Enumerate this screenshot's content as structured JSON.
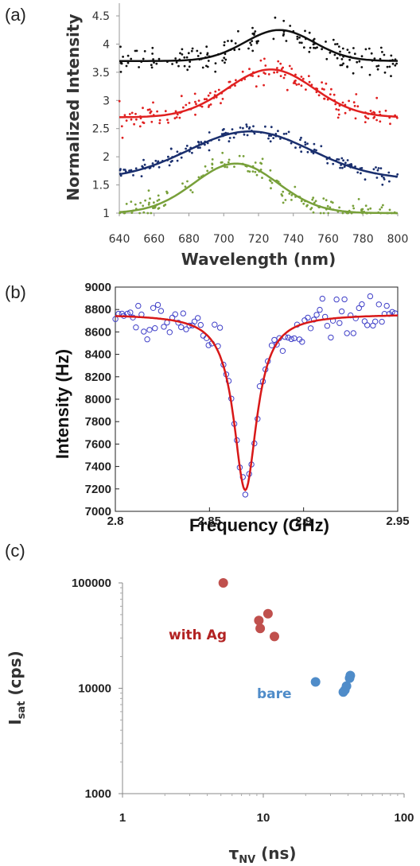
{
  "colors": {
    "black": "#111111",
    "red": "#e02020",
    "navy": "#1a2f6e",
    "green": "#78a03a",
    "open_circle": "#4040c8",
    "fit_red": "#d81818",
    "with_ag": "#c0504d",
    "bare": "#4f8cc9",
    "annot_red": "#b22222",
    "annot_blue": "#4f8cc9"
  },
  "chart_data": [
    {
      "panel": "(a)",
      "type": "scatter",
      "xlabel": "Wavelength (nm)",
      "ylabel": "Normalized Intensity",
      "xlim": [
        640,
        800
      ],
      "ylim": [
        1,
        4.5
      ],
      "xticks": [
        "640",
        "660",
        "680",
        "700",
        "720",
        "740",
        "760",
        "780",
        "800"
      ],
      "yticks": [
        "1",
        "1.5",
        "2",
        "2.5",
        "3",
        "3.5",
        "4",
        "4.5"
      ],
      "grid": false,
      "legend": "none",
      "series": [
        {
          "color": "black",
          "baseline": 3.7,
          "amplitude": 0.55,
          "center": 732,
          "width": 28,
          "noise": 0.17
        },
        {
          "color": "red",
          "baseline": 2.7,
          "amplitude": 0.85,
          "center": 727,
          "width": 35,
          "noise": 0.15
        },
        {
          "color": "navy",
          "baseline": 1.6,
          "amplitude": 0.85,
          "center": 715,
          "width": 50,
          "noise": 0.1
        },
        {
          "color": "green",
          "baseline": 1.0,
          "amplitude": 0.88,
          "center": 707,
          "width": 34,
          "noise": 0.14
        }
      ]
    },
    {
      "panel": "(b)",
      "type": "scatter",
      "xlabel": "Frequency (GHz)",
      "ylabel": "Intensity (Hz)",
      "xlim": [
        2.8,
        2.95
      ],
      "ylim": [
        7000,
        9000
      ],
      "xticks": [
        "2.8",
        "2.85",
        "2.9",
        "2.95"
      ],
      "yticks": [
        "7000",
        "7200",
        "7400",
        "7600",
        "7800",
        "8000",
        "8200",
        "8400",
        "8600",
        "8800",
        "9000"
      ],
      "grid": false,
      "legend": "none",
      "fit": {
        "baseline": 8760,
        "dip_center": 2.869,
        "dip_depth": 1570,
        "half_width": 0.0075
      }
    },
    {
      "panel": "(c)",
      "type": "scatter",
      "xlabel": "τNV (ns)",
      "ylabel": "Isat (cps)",
      "xscale": "log",
      "yscale": "log",
      "xlim": [
        1,
        100
      ],
      "ylim": [
        1000,
        100000
      ],
      "xticks": [
        "1",
        "10",
        "100"
      ],
      "yticks": [
        "1000",
        "10000",
        "100000"
      ],
      "grid": false,
      "legend": "none",
      "series": [
        {
          "annotation": "with Ag",
          "color": "with_ag",
          "points": [
            [
              5.2,
              100000
            ],
            [
              9.3,
              44000
            ],
            [
              9.5,
              37000
            ],
            [
              10.8,
              51000
            ],
            [
              12.0,
              31000
            ]
          ]
        },
        {
          "annotation": "bare",
          "color": "bare",
          "points": [
            [
              23.5,
              11500
            ],
            [
              37.0,
              9200
            ],
            [
              38.0,
              9600
            ],
            [
              39.0,
              10500
            ],
            [
              41.0,
              12500
            ],
            [
              41.5,
              13200
            ]
          ]
        }
      ]
    }
  ]
}
